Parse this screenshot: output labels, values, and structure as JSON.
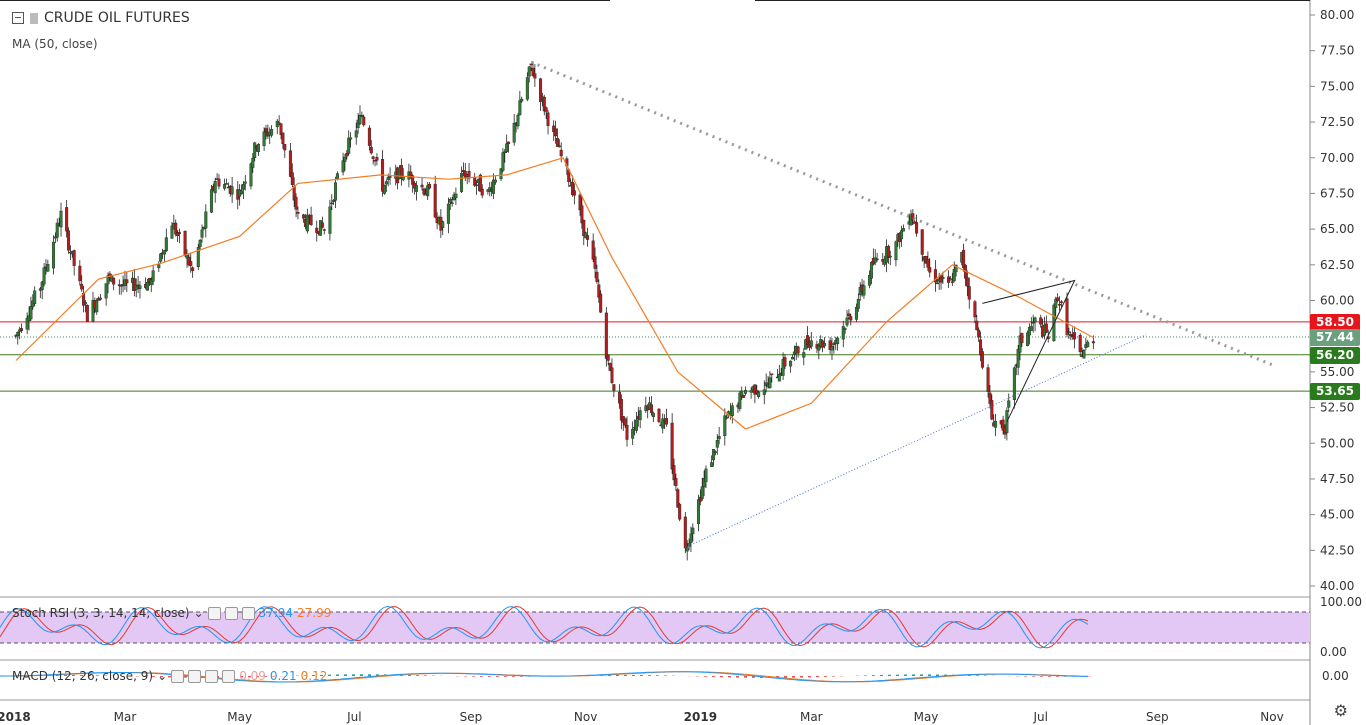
{
  "title": "CRUDE OIL FUTURES",
  "ma_label": "MA (50, close)",
  "stoch_label": "Stoch RSI (3, 3, 14, 14, close)",
  "stoch_values": [
    "37.94",
    "27.99"
  ],
  "macd_label": "MACD (12, 26, close, 9)",
  "macd_values": [
    "0.09",
    "0.21",
    "0.12"
  ],
  "price_axis_ticks": [
    "80.00",
    "77.50",
    "75.00",
    "72.50",
    "70.00",
    "67.50",
    "65.00",
    "62.50",
    "60.00",
    "57.50",
    "55.00",
    "52.50",
    "50.00",
    "47.50",
    "45.00",
    "42.50",
    "40.00"
  ],
  "stoch_axis_ticks": [
    "100.00",
    "0.00"
  ],
  "macd_axis_ticks": [
    "0.00"
  ],
  "time_axis_labels": [
    "2018",
    "Mar",
    "May",
    "Jul",
    "Sep",
    "Nov",
    "2019",
    "Mar",
    "May",
    "Jul",
    "Sep",
    "Nov"
  ],
  "price_tags": [
    {
      "value": "58.50",
      "color": "#e8141b"
    },
    {
      "value": "57.44",
      "color": "#6aa07e"
    },
    {
      "value": "56.20",
      "color": "#2a7a1e"
    },
    {
      "value": "53.65",
      "color": "#2a7a1e"
    }
  ],
  "colors": {
    "up": "#2e7d32",
    "down": "#b71c1c",
    "ma": "#f57c24",
    "stoch_k": "#2196f3",
    "stoch_d": "#e53935",
    "stoch_band": "#e3c8f5"
  },
  "chart_data": {
    "type": "candlestick",
    "title": "CRUDE OIL FUTURES",
    "ylim": [
      40,
      80
    ],
    "x": [
      "2018-01",
      "2018-02",
      "2018-03",
      "2018-04",
      "2018-05",
      "2018-06",
      "2018-07",
      "2018-08",
      "2018-09",
      "2018-10",
      "2018-11",
      "2018-12",
      "2019-01",
      "2019-02",
      "2019-03",
      "2019-04",
      "2019-05",
      "2019-06",
      "2019-07"
    ],
    "close_series": [
      [
        "2018-01-02",
        57.5
      ],
      [
        "2018-01-15",
        61.0
      ],
      [
        "2018-01-26",
        66.0
      ],
      [
        "2018-02-09",
        59.0
      ],
      [
        "2018-02-20",
        61.5
      ],
      [
        "2018-03-01",
        61.0
      ],
      [
        "2018-03-15",
        61.3
      ],
      [
        "2018-03-26",
        65.5
      ],
      [
        "2018-04-06",
        62.0
      ],
      [
        "2018-04-18",
        68.5
      ],
      [
        "2018-05-01",
        67.5
      ],
      [
        "2018-05-10",
        71.0
      ],
      [
        "2018-05-22",
        72.5
      ],
      [
        "2018-06-01",
        65.8
      ],
      [
        "2018-06-15",
        65.0
      ],
      [
        "2018-06-25",
        70.0
      ],
      [
        "2018-07-05",
        73.0
      ],
      [
        "2018-07-16",
        68.0
      ],
      [
        "2018-07-27",
        69.0
      ],
      [
        "2018-08-10",
        67.5
      ],
      [
        "2018-08-16",
        65.0
      ],
      [
        "2018-08-28",
        69.0
      ],
      [
        "2018-09-10",
        67.5
      ],
      [
        "2018-09-21",
        70.8
      ],
      [
        "2018-10-03",
        76.4
      ],
      [
        "2018-10-15",
        71.5
      ],
      [
        "2018-10-26",
        67.5
      ],
      [
        "2018-11-06",
        62.0
      ],
      [
        "2018-11-13",
        55.5
      ],
      [
        "2018-11-23",
        50.5
      ],
      [
        "2018-12-03",
        53.0
      ],
      [
        "2018-12-14",
        51.0
      ],
      [
        "2018-12-24",
        42.5
      ],
      [
        "2019-01-04",
        47.9
      ],
      [
        "2019-01-14",
        51.5
      ],
      [
        "2019-01-25",
        53.7
      ],
      [
        "2019-02-05",
        54.0
      ],
      [
        "2019-02-15",
        55.6
      ],
      [
        "2019-02-28",
        57.2
      ],
      [
        "2019-03-12",
        56.9
      ],
      [
        "2019-03-22",
        59.0
      ],
      [
        "2019-04-03",
        62.6
      ],
      [
        "2019-04-15",
        63.9
      ],
      [
        "2019-04-23",
        66.3
      ],
      [
        "2019-05-03",
        61.9
      ],
      [
        "2019-05-13",
        61.0
      ],
      [
        "2019-05-20",
        63.1
      ],
      [
        "2019-05-30",
        56.6
      ],
      [
        "2019-06-05",
        51.7
      ],
      [
        "2019-06-12",
        51.1
      ],
      [
        "2019-06-20",
        57.1
      ],
      [
        "2019-06-28",
        58.5
      ],
      [
        "2019-07-05",
        57.5
      ],
      [
        "2019-07-10",
        60.4
      ],
      [
        "2019-07-16",
        57.6
      ],
      [
        "2019-07-22",
        56.2
      ],
      [
        "2019-07-29",
        57.4
      ]
    ],
    "ma50_series": [
      [
        "2018-01-02",
        55.8
      ],
      [
        "2018-02-15",
        61.5
      ],
      [
        "2018-03-20",
        62.6
      ],
      [
        "2018-05-01",
        64.5
      ],
      [
        "2018-06-01",
        68.2
      ],
      [
        "2018-07-15",
        68.8
      ],
      [
        "2018-08-20",
        68.5
      ],
      [
        "2018-09-20",
        68.8
      ],
      [
        "2018-10-20",
        70.0
      ],
      [
        "2018-11-15",
        63.0
      ],
      [
        "2018-12-20",
        55.0
      ],
      [
        "2019-01-25",
        51.0
      ],
      [
        "2019-03-01",
        52.8
      ],
      [
        "2019-04-10",
        58.5
      ],
      [
        "2019-05-15",
        62.5
      ],
      [
        "2019-06-20",
        60.2
      ],
      [
        "2019-07-29",
        57.4
      ]
    ],
    "levels": [
      58.5,
      57.44,
      56.2,
      53.65
    ],
    "trendlines": [
      {
        "from": [
          "2018-10-03",
          76.7
        ],
        "to": [
          "2019-11-01",
          55.5
        ],
        "style": "dotted"
      },
      {
        "from": [
          "2018-12-24",
          42.7
        ],
        "to": [
          "2019-08-26",
          57.6
        ],
        "style": "dotted"
      }
    ],
    "axis_dates": [
      "2018-01-01",
      "2018-03-01",
      "2018-05-01",
      "2018-07-01",
      "2018-09-01",
      "2018-11-01",
      "2019-01-01",
      "2019-03-01",
      "2019-05-01",
      "2019-07-01",
      "2019-09-01",
      "2019-11-01"
    ]
  }
}
